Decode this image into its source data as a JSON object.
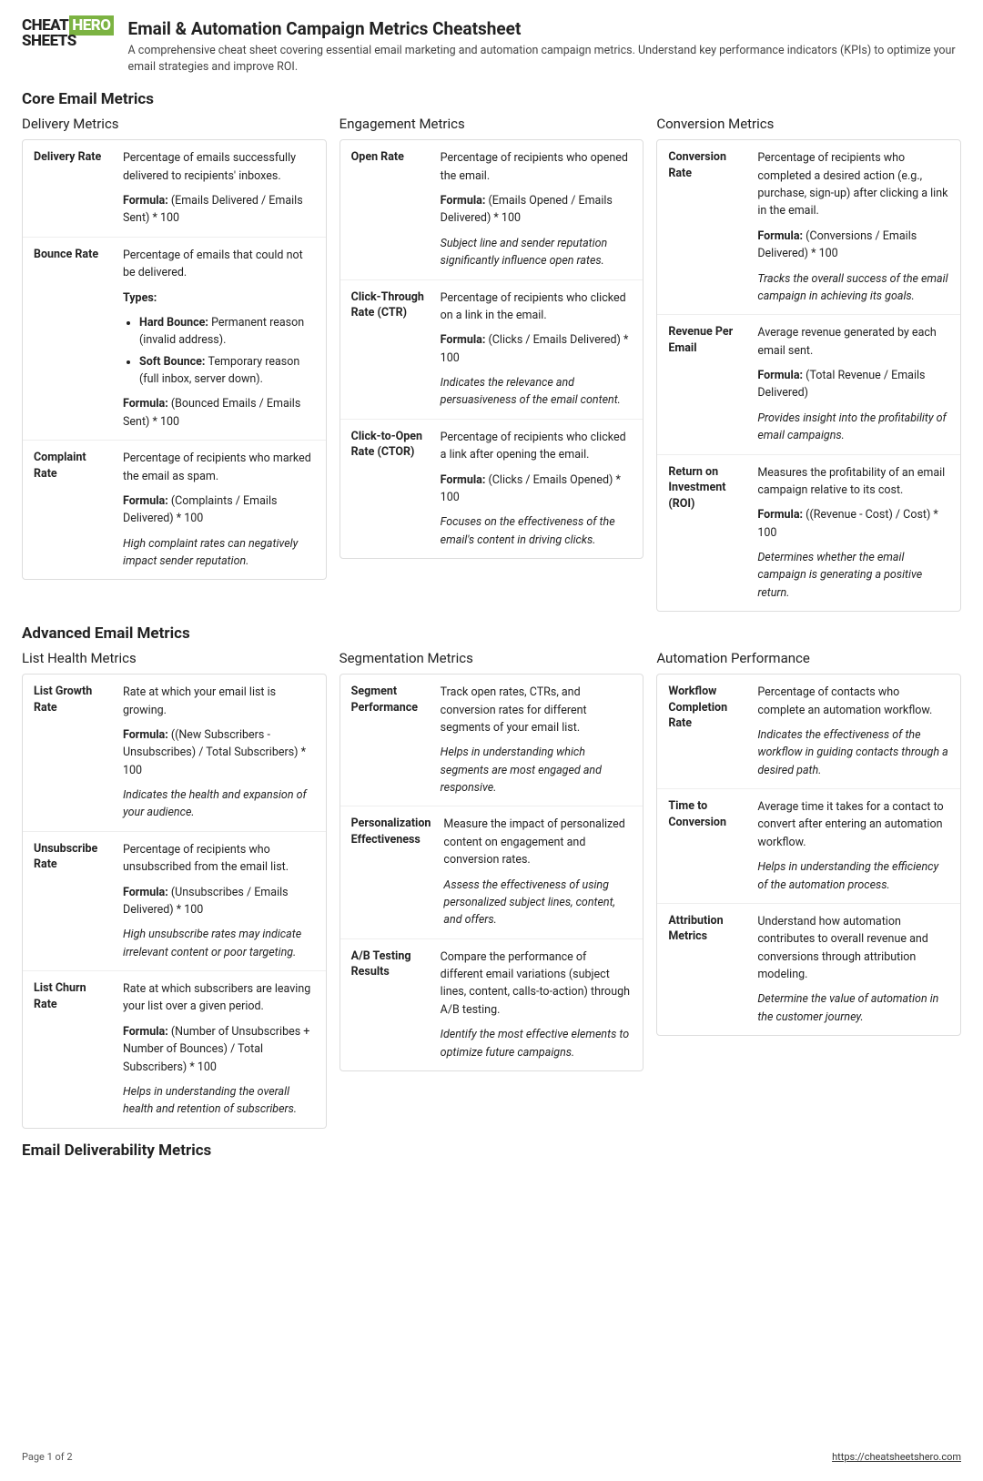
{
  "logo": {
    "line1": "CHEAT",
    "hero": "HERO",
    "line2": "SHEETS"
  },
  "header": {
    "title": "Email & Automation Campaign Metrics Cheatsheet",
    "description": "A comprehensive cheat sheet covering essential email marketing and automation campaign metrics. Understand key performance indicators (KPIs) to optimize your email strategies and improve ROI."
  },
  "sections": [
    {
      "title": "Core Email Metrics",
      "columns": [
        {
          "title": "Delivery Metrics",
          "metrics": [
            {
              "name": "Delivery Rate",
              "desc": "Percentage of emails successfully delivered to recipients' inboxes.",
              "formula": "(Emails Delivered / Emails Sent) * 100"
            },
            {
              "name": "Bounce Rate",
              "desc": "Percentage of emails that could not be delivered.",
              "typesLabel": "Types:",
              "types": [
                {
                  "label": "Hard Bounce:",
                  "text": "Permanent reason (invalid address)."
                },
                {
                  "label": "Soft Bounce:",
                  "text": "Temporary reason (full inbox, server down)."
                }
              ],
              "formula": "(Bounced Emails / Emails Sent) * 100"
            },
            {
              "name": "Complaint Rate",
              "desc": "Percentage of recipients who marked the email as spam.",
              "formula": "(Complaints / Emails Delivered) * 100",
              "note": "High complaint rates can negatively impact sender reputation."
            }
          ]
        },
        {
          "title": "Engagement Metrics",
          "metrics": [
            {
              "name": "Open Rate",
              "desc": "Percentage of recipients who opened the email.",
              "formula": "(Emails Opened / Emails Delivered) * 100",
              "note": "Subject line and sender reputation significantly influence open rates."
            },
            {
              "name": "Click-Through Rate (CTR)",
              "desc": "Percentage of recipients who clicked on a link in the email.",
              "formula": "(Clicks / Emails Delivered) * 100",
              "note": "Indicates the relevance and persuasiveness of the email content."
            },
            {
              "name": "Click-to-Open Rate (CTOR)",
              "desc": "Percentage of recipients who clicked a link after opening the email.",
              "formula": "(Clicks / Emails Opened) * 100",
              "note": "Focuses on the effectiveness of the email's content in driving clicks."
            }
          ]
        },
        {
          "title": "Conversion Metrics",
          "metrics": [
            {
              "name": "Conversion Rate",
              "desc": "Percentage of recipients who completed a desired action (e.g., purchase, sign-up) after clicking a link in the email.",
              "formula": "(Conversions / Emails Delivered) * 100",
              "note": "Tracks the overall success of the email campaign in achieving its goals."
            },
            {
              "name": "Revenue Per Email",
              "desc": "Average revenue generated by each email sent.",
              "formula": "(Total Revenue / Emails Delivered)",
              "note": "Provides insight into the profitability of email campaigns."
            },
            {
              "name": "Return on Investment (ROI)",
              "desc": "Measures the profitability of an email campaign relative to its cost.",
              "formula": "((Revenue - Cost) / Cost) * 100",
              "note": "Determines whether the email campaign is generating a positive return."
            }
          ]
        }
      ]
    },
    {
      "title": "Advanced Email Metrics",
      "columns": [
        {
          "title": "List Health Metrics",
          "metrics": [
            {
              "name": "List Growth Rate",
              "desc": "Rate at which your email list is growing.",
              "formula": "((New Subscribers - Unsubscribes) / Total Subscribers) * 100",
              "note": "Indicates the health and expansion of your audience."
            },
            {
              "name": "Unsubscribe Rate",
              "desc": "Percentage of recipients who unsubscribed from the email list.",
              "formula": "(Unsubscribes / Emails Delivered) * 100",
              "note": "High unsubscribe rates may indicate irrelevant content or poor targeting."
            },
            {
              "name": "List Churn Rate",
              "desc": "Rate at which subscribers are leaving your list over a given period.",
              "formula": "(Number of Unsubscribes + Number of Bounces) / Total Subscribers) * 100",
              "note": "Helps in understanding the overall health and retention of subscribers."
            }
          ]
        },
        {
          "title": "Segmentation Metrics",
          "metrics": [
            {
              "name": "Segment Performance",
              "desc": "Track open rates, CTRs, and conversion rates for different segments of your email list.",
              "note": "Helps in understanding which segments are most engaged and responsive."
            },
            {
              "name": "Personalization Effectiveness",
              "desc": "Measure the impact of personalized content on engagement and conversion rates.",
              "note": "Assess the effectiveness of using personalized subject lines, content, and offers."
            },
            {
              "name": "A/B Testing Results",
              "desc": "Compare the performance of different email variations (subject lines, content, calls-to-action) through A/B testing.",
              "note": "Identify the most effective elements to optimize future campaigns."
            }
          ]
        },
        {
          "title": "Automation Performance",
          "metrics": [
            {
              "name": "Workflow Completion Rate",
              "desc": "Percentage of contacts who complete an automation workflow.",
              "note": "Indicates the effectiveness of the workflow in guiding contacts through a desired path."
            },
            {
              "name": "Time to Conversion",
              "desc": "Average time it takes for a contact to convert after entering an automation workflow.",
              "note": "Helps in understanding the efficiency of the automation process."
            },
            {
              "name": "Attribution Metrics",
              "desc": "Understand how automation contributes to overall revenue and conversions through attribution modeling.",
              "note": "Determine the value of automation in the customer journey."
            }
          ]
        }
      ]
    }
  ],
  "bottomSectionTitle": "Email Deliverability Metrics",
  "footer": {
    "pageLabel": "Page 1 of 2",
    "url": "https://cheatsheetshero.com"
  },
  "formulaPrefix": "Formula: "
}
